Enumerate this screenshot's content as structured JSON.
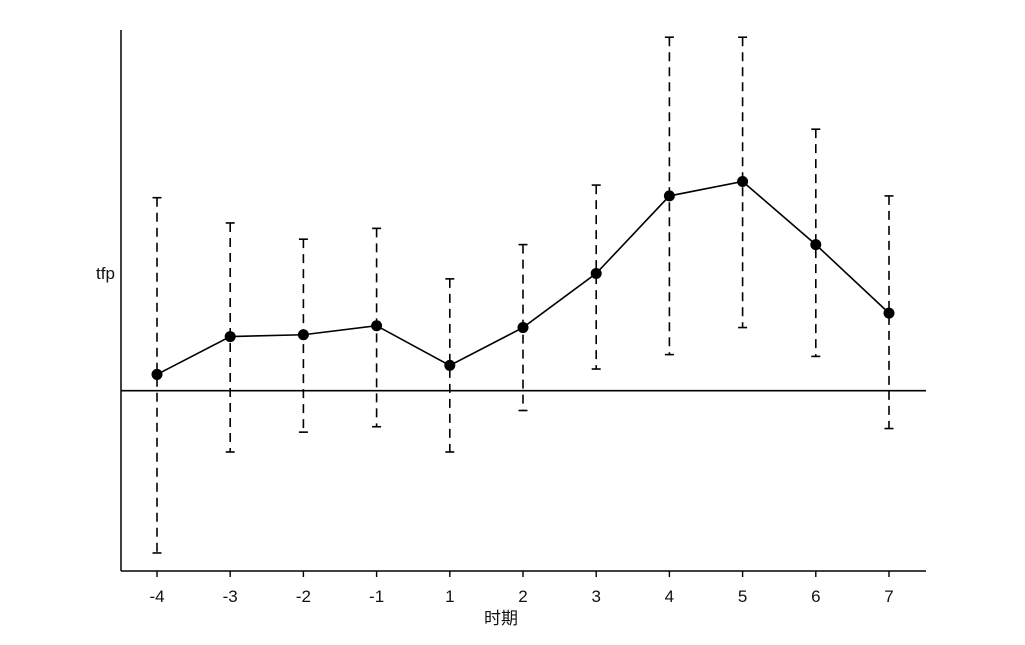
{
  "chart_data": {
    "type": "line",
    "xlabel": "时期",
    "ylabel": "tfp",
    "categories": [
      "-4",
      "-3",
      "-2",
      "-1",
      "1",
      "2",
      "3",
      "4",
      "5",
      "6",
      "7"
    ],
    "series": [
      {
        "values": [
          0.09,
          0.3,
          0.31,
          0.36,
          0.14,
          0.35,
          0.65,
          1.08,
          1.16,
          0.81,
          0.43
        ],
        "ci_lower": [
          -0.9,
          -0.34,
          -0.23,
          -0.2,
          -0.34,
          -0.11,
          0.12,
          0.2,
          0.35,
          0.19,
          -0.21
        ],
        "ci_upper": [
          1.07,
          0.93,
          0.84,
          0.9,
          0.62,
          0.81,
          1.14,
          1.96,
          1.96,
          1.45,
          1.08
        ]
      }
    ],
    "ylim": [
      -1.0,
      2.0
    ],
    "reference_line": 0,
    "grid": false,
    "colors": {
      "line": "#000000",
      "marker": "#000000",
      "errorbar": "#000000"
    }
  }
}
